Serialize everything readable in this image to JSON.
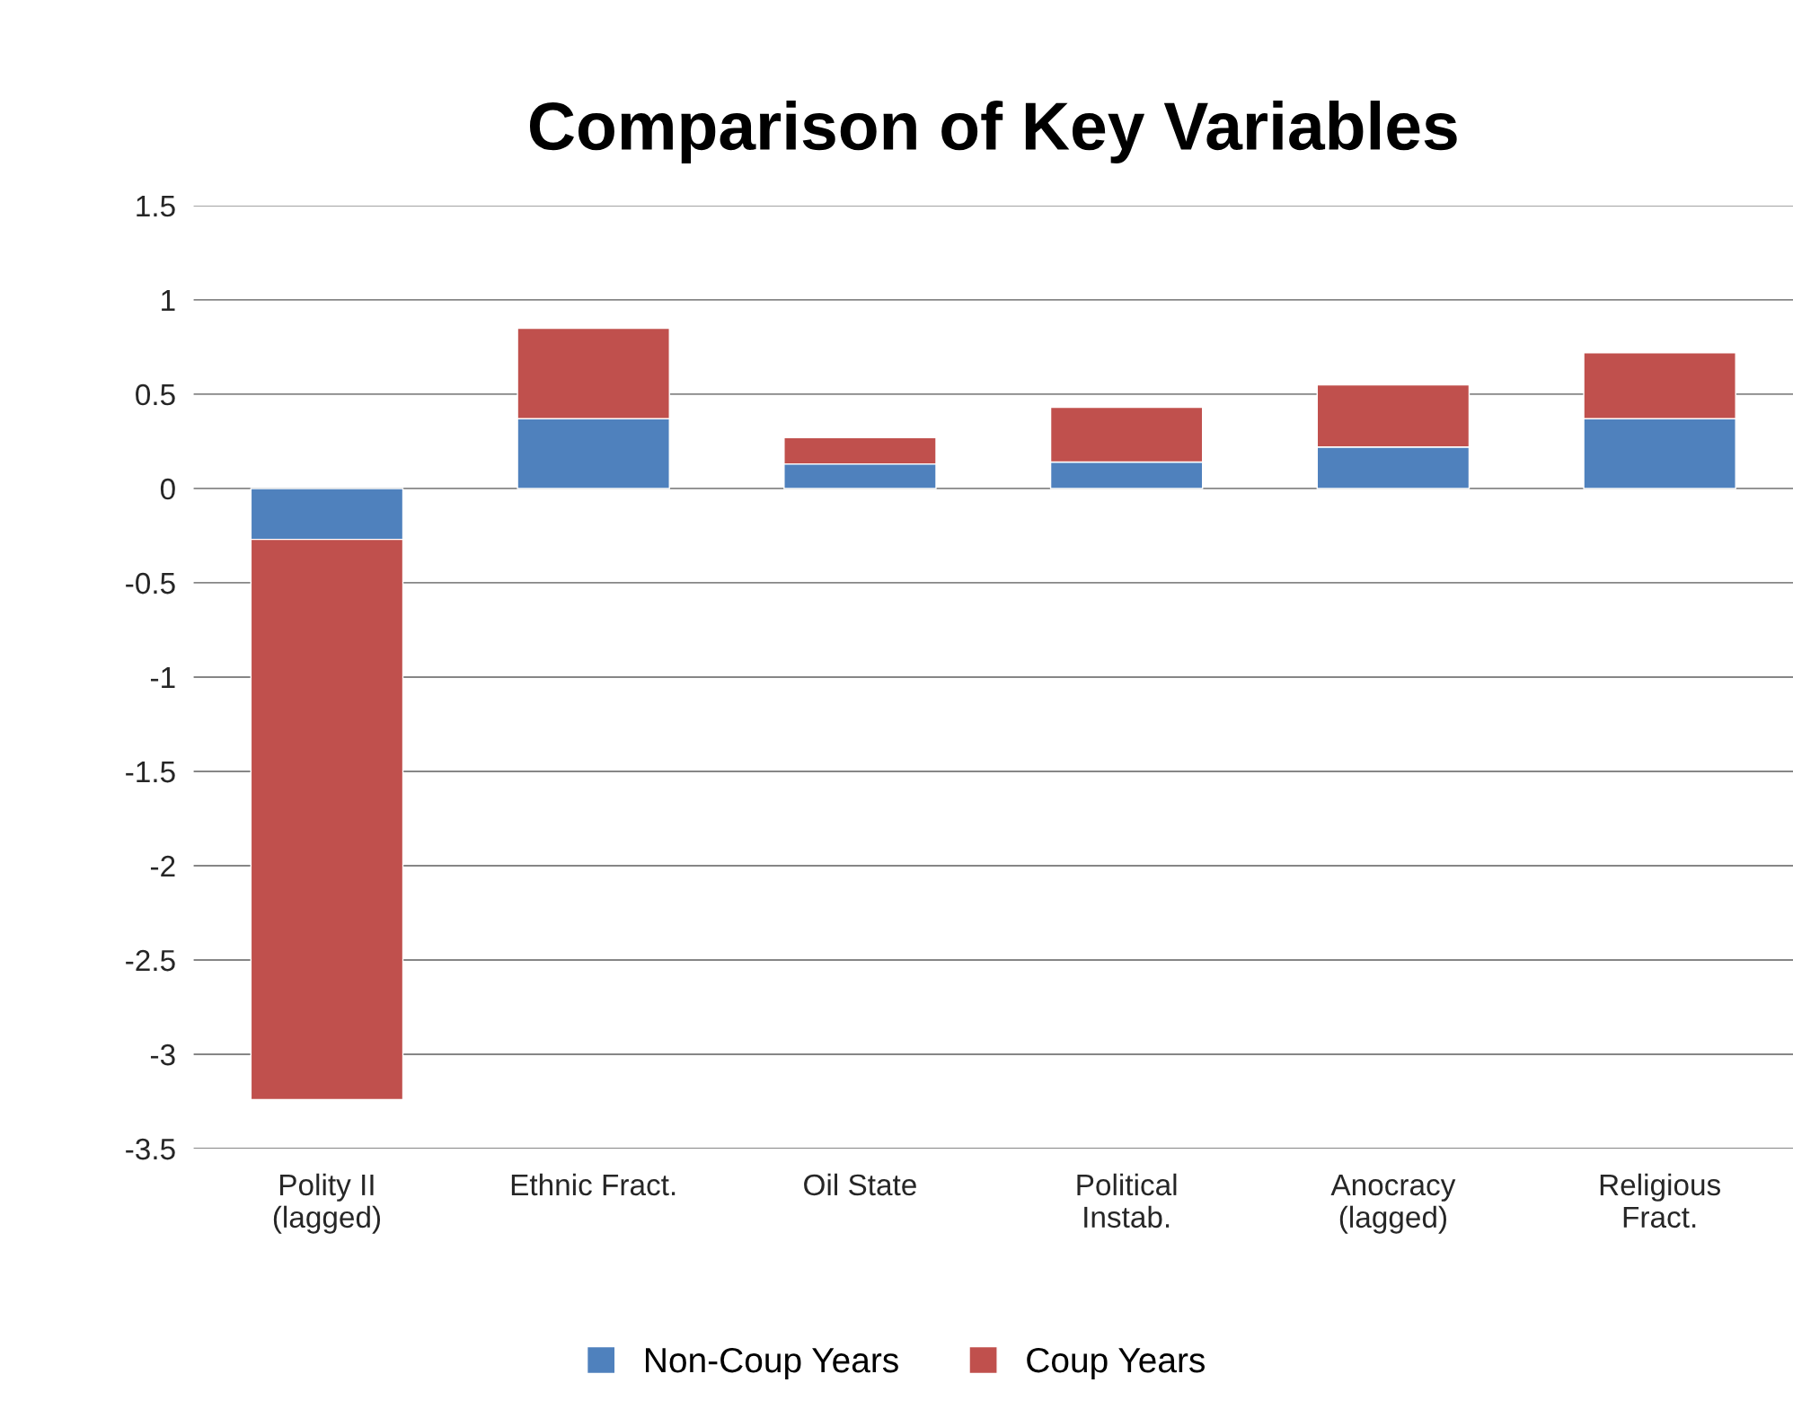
{
  "chart_data": {
    "type": "bar",
    "title": "Comparison of Key Variables",
    "categories": [
      "Polity II\n(lagged)",
      "Ethnic Fract.",
      "Oil State",
      "Political\nInstab.",
      "Anocracy\n(lagged)",
      "Religious\nFract."
    ],
    "stacked": true,
    "series": [
      {
        "name": "Non-Coup Years",
        "color": "#4f81bd",
        "values": [
          -0.27,
          0.37,
          0.13,
          0.14,
          0.22,
          0.37
        ]
      },
      {
        "name": "Coup Years",
        "color": "#c0504d",
        "values": [
          -2.97,
          0.48,
          0.14,
          0.29,
          0.33,
          0.35
        ]
      }
    ],
    "ylim": [
      -3.5,
      1.5
    ],
    "yticks": [
      {
        "value": 1.5,
        "label": "1.5"
      },
      1,
      {
        "value": 0.5,
        "label": "0.5"
      },
      0,
      {
        "value": -0.5,
        "label": "-0.5"
      },
      {
        "value": -1,
        "label": "-1"
      },
      {
        "value": -1.5,
        "label": "-1.5"
      },
      {
        "value": -2,
        "label": "-2"
      },
      {
        "value": -2.5,
        "label": "-2.5"
      },
      {
        "value": -3,
        "label": "-3"
      },
      {
        "value": -3.5,
        "label": "-3.5"
      }
    ],
    "grid": "y",
    "legend": "bottom"
  }
}
